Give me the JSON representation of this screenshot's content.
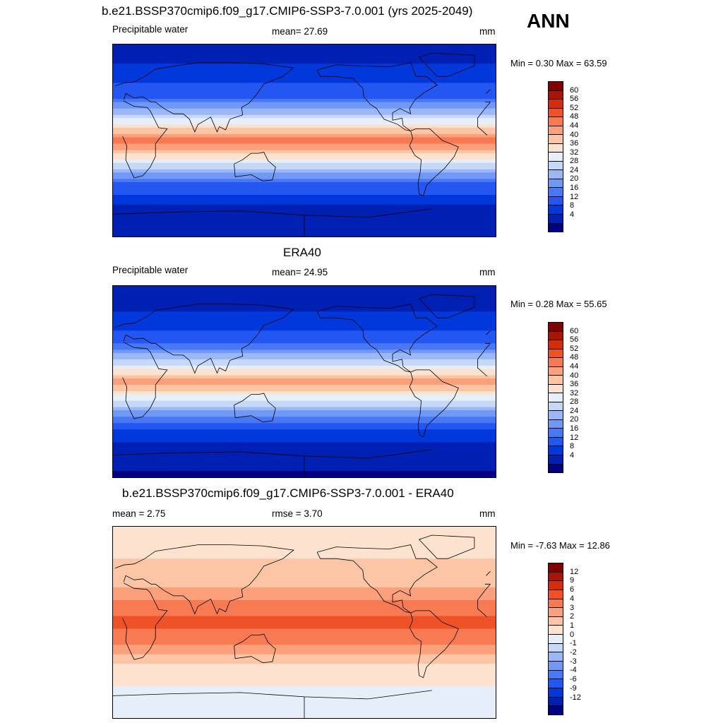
{
  "season": "ANN",
  "colors": {
    "abs_scale": [
      "#000080",
      "#0020b4",
      "#0038dc",
      "#2456f2",
      "#4878f6",
      "#7098f6",
      "#9ab8f7",
      "#c6d8f8",
      "#e6eefa",
      "#fde3cf",
      "#fcc6a6",
      "#fba07a",
      "#f77a52",
      "#f05228",
      "#d62c0c",
      "#aa1404",
      "#800000"
    ],
    "diff_scale": [
      "#000080",
      "#0020b4",
      "#0038dc",
      "#2456f2",
      "#4878f6",
      "#7098f6",
      "#9ab8f7",
      "#c6d8f8",
      "#e6eefa",
      "#fde3cf",
      "#fcc6a6",
      "#fba07a",
      "#f77a52",
      "#f05228",
      "#d62c0c",
      "#aa1404",
      "#800000"
    ],
    "land_line": "#000000"
  },
  "panels": [
    {
      "title": "b.e21.BSSP370cmip6.f09_g17.CMIP6-SSP3-7.0.001 (yrs 2025-2049)",
      "left_label": "Precipitable water",
      "center_label": "mean=  27.69",
      "units": "mm",
      "minmax": "Min =   0.30 Max =  63.59",
      "colorbar_labels": [
        "60",
        "56",
        "52",
        "48",
        "44",
        "40",
        "36",
        "32",
        "28",
        "24",
        "20",
        "16",
        "12",
        "8",
        "4"
      ]
    },
    {
      "title": "ERA40",
      "left_label": "Precipitable water",
      "center_label": "mean=  24.95",
      "units": "mm",
      "minmax": "Min =   0.28 Max =  55.65",
      "colorbar_labels": [
        "60",
        "56",
        "52",
        "48",
        "44",
        "40",
        "36",
        "32",
        "28",
        "24",
        "20",
        "16",
        "12",
        "8",
        "4"
      ]
    },
    {
      "title": "b.e21.BSSP370cmip6.f09_g17.CMIP6-SSP3-7.0.001 - ERA40",
      "left_label": "mean =   2.75",
      "center_label": "rmse =   3.70",
      "units": "mm",
      "minmax": "Min =  -7.63 Max =  12.86",
      "colorbar_labels": [
        "12",
        "9",
        "6",
        "4",
        "3",
        "2",
        "1",
        "0",
        "-1",
        "-2",
        "-3",
        "-4",
        "-6",
        "-9",
        "-12"
      ]
    }
  ],
  "chart_data": [
    {
      "type": "heatmap",
      "title": "b.e21.BSSP370cmip6.f09_g17.CMIP6-SSP3-7.0.001 (yrs 2025-2049)",
      "variable": "Precipitable water",
      "units": "mm",
      "mean": 27.69,
      "min": 0.3,
      "max": 63.59,
      "contour_levels": [
        4,
        8,
        12,
        16,
        20,
        24,
        28,
        32,
        36,
        40,
        44,
        48,
        52,
        56,
        60
      ],
      "zonal_profile": {
        "lat": [
          90,
          60,
          40,
          20,
          5,
          0,
          -5,
          -20,
          -40,
          -60,
          -90
        ],
        "value": [
          5,
          10,
          16,
          32,
          46,
          52,
          46,
          34,
          16,
          8,
          4
        ]
      }
    },
    {
      "type": "heatmap",
      "title": "ERA40",
      "variable": "Precipitable water",
      "units": "mm",
      "mean": 24.95,
      "min": 0.28,
      "max": 55.65,
      "contour_levels": [
        4,
        8,
        12,
        16,
        20,
        24,
        28,
        32,
        36,
        40,
        44,
        48,
        52,
        56,
        60
      ],
      "zonal_profile": {
        "lat": [
          90,
          60,
          40,
          20,
          5,
          0,
          -5,
          -20,
          -40,
          -60,
          -90
        ],
        "value": [
          4,
          9,
          14,
          28,
          42,
          46,
          42,
          30,
          14,
          7,
          3
        ]
      }
    },
    {
      "type": "heatmap",
      "title": "b.e21.BSSP370cmip6.f09_g17.CMIP6-SSP3-7.0.001 - ERA40",
      "units": "mm",
      "mean": 2.75,
      "rmse": 3.7,
      "min": -7.63,
      "max": 12.86,
      "contour_levels": [
        -12,
        -9,
        -6,
        -4,
        -3,
        -2,
        -1,
        0,
        1,
        2,
        3,
        4,
        6,
        9,
        12
      ],
      "zonal_profile": {
        "lat": [
          90,
          60,
          40,
          20,
          5,
          0,
          -5,
          -20,
          -40,
          -60,
          -90
        ],
        "value": [
          1,
          2,
          2.5,
          4,
          6,
          7,
          6,
          4,
          2,
          1,
          0.5
        ]
      }
    }
  ]
}
